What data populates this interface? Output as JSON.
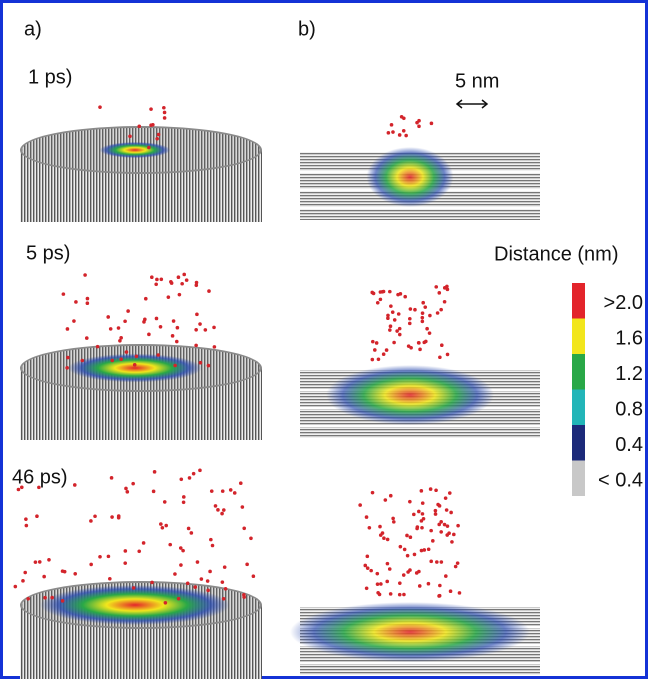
{
  "panels": {
    "a": "a)",
    "b": "b)"
  },
  "rows": [
    {
      "time": "1 ps)"
    },
    {
      "time": "5 ps)"
    },
    {
      "time": "46 ps)"
    }
  ],
  "scale_bar": "5 nm",
  "colorbar": {
    "title": "Distance (nm)",
    "entries": [
      {
        "label": ">2.0",
        "color": "#e3242b"
      },
      {
        "label": "1.6",
        "color": "#f2e61c"
      },
      {
        "label": "1.2",
        "color": "#29a847"
      },
      {
        "label": "0.8",
        "color": "#22b5b8"
      },
      {
        "label": "0.4",
        "color": "#1c2a7a"
      },
      {
        "label": "< 0.4",
        "color": "#c8c8c8"
      }
    ]
  }
}
